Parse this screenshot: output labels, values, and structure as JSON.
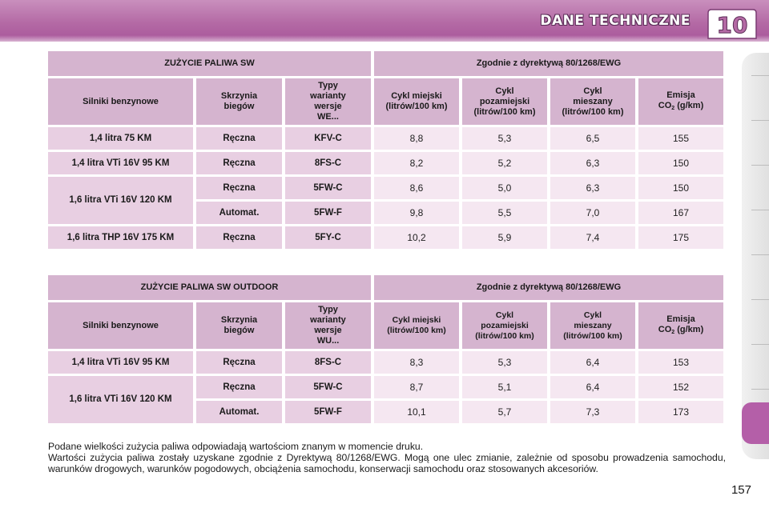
{
  "header": {
    "title": "DANE TECHNICZNE",
    "chapter": "10",
    "colors": {
      "accent": "#b46aa5",
      "header_cell": "#d5b4cf",
      "row_label_cell": "#e8cfe2",
      "value_cell": "#f5e7f1",
      "side_tab": "#b45fa8"
    }
  },
  "table1": {
    "title_left": "ZUŻYCIE PALIWA SW",
    "title_right": "Zgodnie z dyrektywą 80/1268/EWG",
    "columns": {
      "engine": "Silniki benzynowe",
      "gearbox_line1": "Skrzynia",
      "gearbox_line2": "biegów",
      "variant_line1": "Typy",
      "variant_line2": "warianty",
      "variant_line3": "wersje",
      "variant_line4": "WE...",
      "urban_line1": "Cykl miejski",
      "urban_line2": "(litrów/100 km)",
      "extra_line1": "Cykl",
      "extra_line2": "pozamiejski",
      "extra_line3": "(litrów/100 km)",
      "mixed_line1": "Cykl",
      "mixed_line2": "mieszany",
      "mixed_line3": "(litrów/100 km)",
      "co2_line1": "Emisja",
      "co2_prefix": "CO",
      "co2_sub": "2",
      "co2_suffix": " (g/km)"
    },
    "engines": [
      "1,4 litra 75 KM",
      "1,4 litra VTi 16V 95 KM",
      "1,6 litra VTi 16V 120 KM",
      "1,6 litra THP 16V 175 KM"
    ],
    "rows": [
      {
        "gearbox": "Ręczna",
        "type": "KFV-C",
        "urban": "8,8",
        "extra": "5,3",
        "mixed": "6,5",
        "co2": "155"
      },
      {
        "gearbox": "Ręczna",
        "type": "8FS-C",
        "urban": "8,2",
        "extra": "5,2",
        "mixed": "6,3",
        "co2": "150"
      },
      {
        "gearbox": "Ręczna",
        "type": "5FW-C",
        "urban": "8,6",
        "extra": "5,0",
        "mixed": "6,3",
        "co2": "150"
      },
      {
        "gearbox": "Automat.",
        "type": "5FW-F",
        "urban": "9,8",
        "extra": "5,5",
        "mixed": "7,0",
        "co2": "167"
      },
      {
        "gearbox": "Ręczna",
        "type": "5FY-C",
        "urban": "10,2",
        "extra": "5,9",
        "mixed": "7,4",
        "co2": "175"
      }
    ]
  },
  "table2": {
    "title_left": "ZUŻYCIE PALIWA SW OUTDOOR",
    "title_right": "Zgodnie z dyrektywą 80/1268/EWG",
    "columns": {
      "engine": "Silniki benzynowe",
      "gearbox_line1": "Skrzynia",
      "gearbox_line2": "biegów",
      "variant_line1": "Typy",
      "variant_line2": "warianty",
      "variant_line3": "wersje",
      "variant_line4": "WU...",
      "urban_line1": "Cykl miejski",
      "urban_line2": "(litrów/100 km)",
      "extra_line1": "Cykl",
      "extra_line2": "pozamiejski",
      "extra_line3": "(litrów/100 km)",
      "mixed_line1": "Cykl",
      "mixed_line2": "mieszany",
      "mixed_line3": "(litrów/100 km)",
      "co2_line1": "Emisja",
      "co2_prefix": "CO",
      "co2_sub": "2",
      "co2_suffix": " (g/km)"
    },
    "engines": [
      "1,4 litra VTi 16V 95 KM",
      "1,6 litra VTi 16V 120 KM"
    ],
    "rows": [
      {
        "gearbox": "Ręczna",
        "type": "8FS-C",
        "urban": "8,3",
        "extra": "5,3",
        "mixed": "6,4",
        "co2": "153"
      },
      {
        "gearbox": "Ręczna",
        "type": "5FW-C",
        "urban": "8,7",
        "extra": "5,1",
        "mixed": "6,4",
        "co2": "152"
      },
      {
        "gearbox": "Automat.",
        "type": "5FW-F",
        "urban": "10,1",
        "extra": "5,7",
        "mixed": "7,3",
        "co2": "173"
      }
    ]
  },
  "footnote": {
    "line1": "Podane wielkości zużycia paliwa odpowiadają wartościom znanym w momencie druku.",
    "line2": "Wartości zużycia paliwa zostały uzyskane zgodnie z Dyrektywą 80/1268/EWG. Mogą one ulec zmianie, zależnie od sposobu prowadzenia samochodu, warunków drogowych, warunków pogodowych, obciążenia samochodu, konserwacji samochodu oraz stosowanych akcesoriów."
  },
  "page_number": "157"
}
